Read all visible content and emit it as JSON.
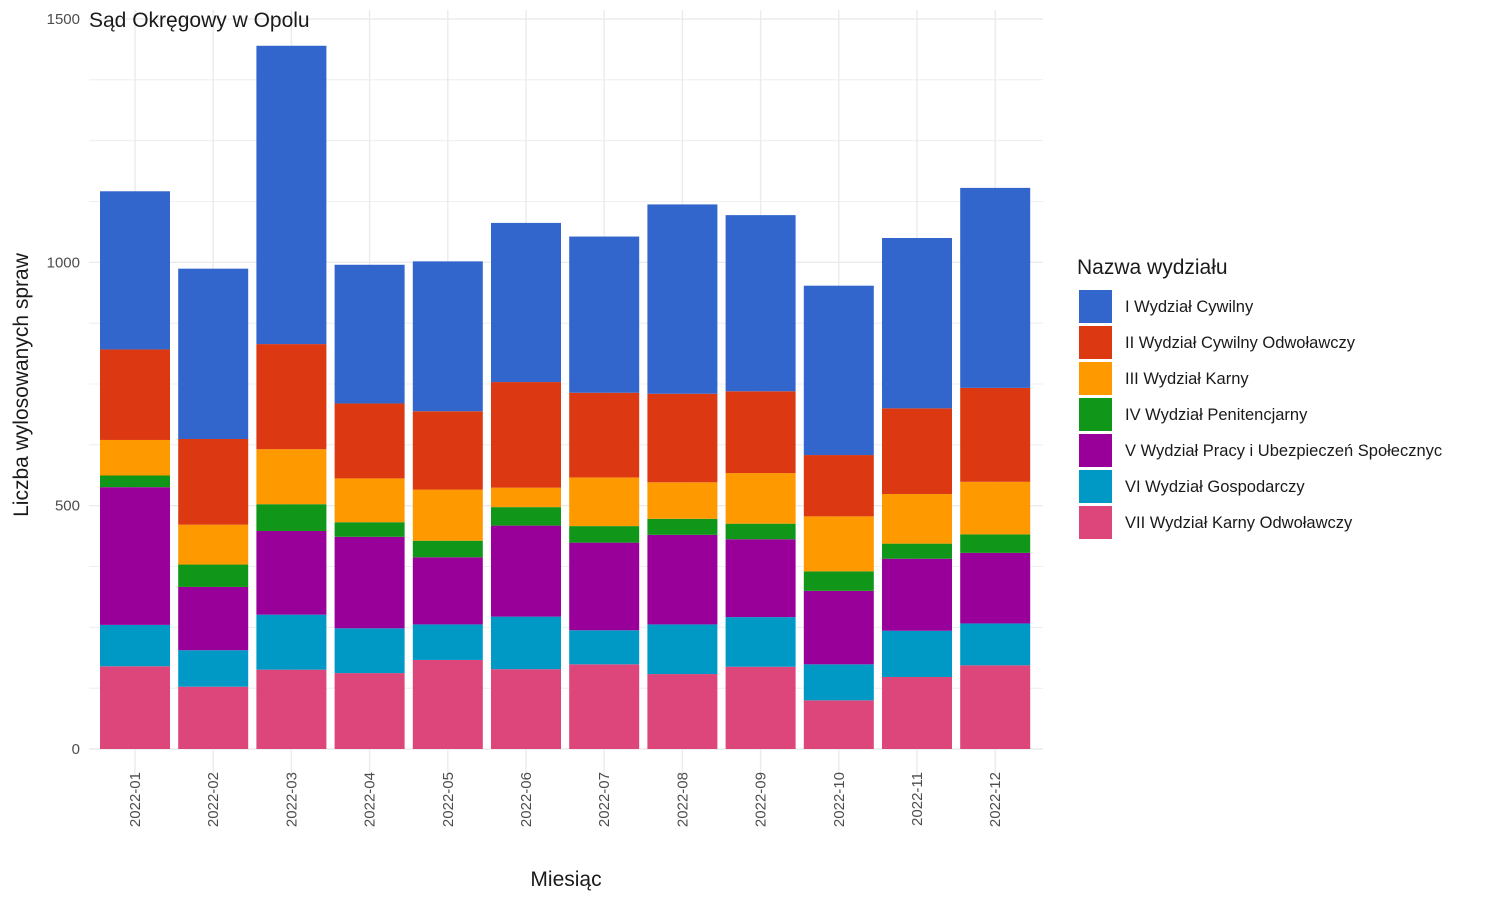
{
  "chart_data": {
    "type": "bar",
    "stacked": true,
    "title": "Sąd Okręgowy w Opolu",
    "xlabel": "Miesiąc",
    "ylabel": "Liczba wylosowanych spraw",
    "ylim": [
      0,
      1500
    ],
    "yticks": [
      0,
      500,
      1000,
      1500
    ],
    "grid": true,
    "legend_title": "Nazwa wydziału",
    "legend_position": "right",
    "categories": [
      "2022-01",
      "2022-02",
      "2022-03",
      "2022-04",
      "2022-05",
      "2022-06",
      "2022-07",
      "2022-08",
      "2022-09",
      "2022-10",
      "2022-11",
      "2022-12"
    ],
    "series": [
      {
        "name": "VII Wydział Karny Odwoławczy",
        "color": "#DD467A",
        "values": [
          170,
          128,
          163,
          156,
          183,
          164,
          174,
          154,
          169,
          100,
          148,
          172
        ]
      },
      {
        "name": "VI Wydział Gospodarczy",
        "color": "#0099C6",
        "values": [
          85,
          75,
          113,
          92,
          73,
          108,
          70,
          102,
          102,
          74,
          95,
          86
        ]
      },
      {
        "name": "V Wydział Pracy i Ubezpieczeń Społecznyc",
        "color": "#990099",
        "values": [
          283,
          130,
          172,
          188,
          138,
          187,
          180,
          184,
          160,
          151,
          148,
          145
        ]
      },
      {
        "name": "IV Wydział Penitencjarny",
        "color": "#109618",
        "values": [
          24,
          46,
          55,
          30,
          34,
          38,
          34,
          33,
          32,
          40,
          31,
          38
        ]
      },
      {
        "name": "III Wydział Karny",
        "color": "#FF9900",
        "values": [
          73,
          82,
          113,
          90,
          105,
          40,
          100,
          75,
          104,
          113,
          102,
          108
        ]
      },
      {
        "name": "II Wydział Cywilny Odwoławczy",
        "color": "#DC3912",
        "values": [
          186,
          176,
          216,
          154,
          161,
          217,
          174,
          182,
          168,
          126,
          176,
          193
        ]
      },
      {
        "name": "I Wydział Cywilny",
        "color": "#3366CC",
        "values": [
          325,
          350,
          613,
          285,
          308,
          327,
          321,
          389,
          362,
          348,
          350,
          411
        ]
      }
    ],
    "legend_order": [
      "I Wydział Cywilny",
      "II Wydział Cywilny Odwoławczy",
      "III Wydział Karny",
      "IV Wydział Penitencjarny",
      "V Wydział Pracy i Ubezpieczeń Społecznyc",
      "VI Wydział Gospodarczy",
      "VII Wydział Karny Odwoławczy"
    ]
  }
}
